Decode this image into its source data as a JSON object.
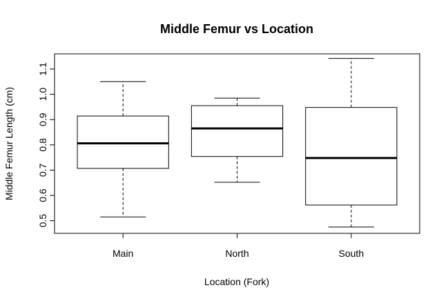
{
  "chart_data": {
    "type": "box",
    "title": "Middle Femur vs Location",
    "xlabel": "Location (Fork)",
    "ylabel": "Middle Femur Length (cm)",
    "ylim": [
      0.45,
      1.16
    ],
    "yticks": [
      "0.5",
      "0.6",
      "0.7",
      "0.8",
      "0.9",
      "1.0",
      "1.1"
    ],
    "grid": false,
    "categories": [
      "Main",
      "North",
      "South"
    ],
    "boxes": [
      {
        "category": "Main",
        "min": 0.515,
        "q1": 0.707,
        "median": 0.806,
        "q3": 0.914,
        "max": 1.05
      },
      {
        "category": "North",
        "min": 0.652,
        "q1": 0.754,
        "median": 0.865,
        "q3": 0.955,
        "max": 0.985
      },
      {
        "category": "South",
        "min": 0.475,
        "q1": 0.562,
        "median": 0.748,
        "q3": 0.948,
        "max": 1.142
      }
    ]
  }
}
